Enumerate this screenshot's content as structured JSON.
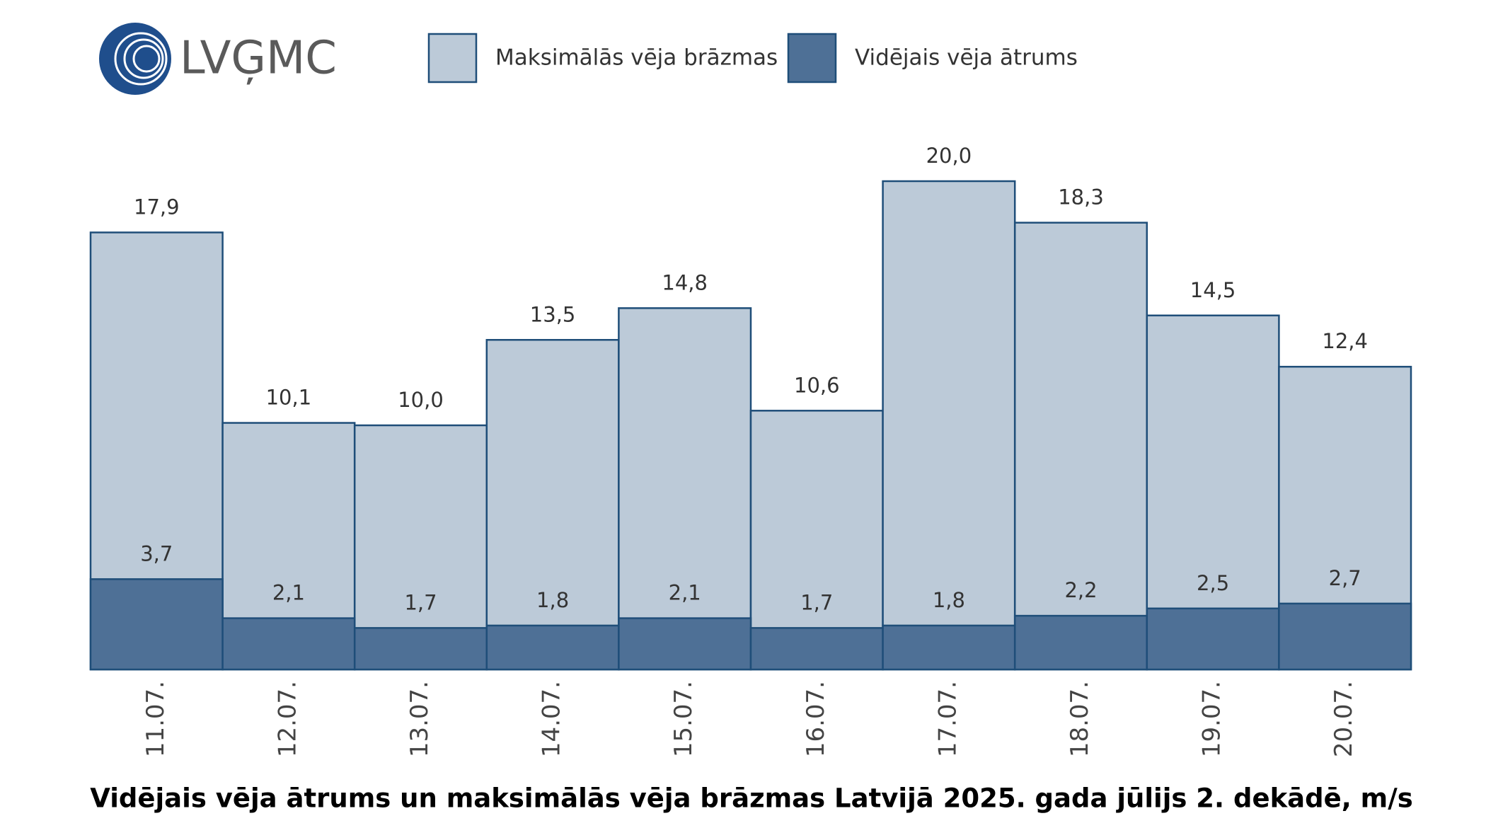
{
  "logo": "LVĢMC",
  "chart_data": {
    "type": "overlap-bar",
    "title": "Vidējais vēja ātrums un maksimālās vēja brāzmas Latvijā 2025. gada jūlijs 2. dekādē, m/s",
    "categories": [
      "11.07.",
      "12.07.",
      "13.07.",
      "14.07.",
      "15.07.",
      "16.07.",
      "17.07.",
      "18.07.",
      "19.07.",
      "20.07."
    ],
    "series": [
      {
        "name": "Maksimālās vēja brāzmas",
        "color": "#bccad8",
        "values": [
          17.9,
          10.1,
          10.0,
          13.5,
          14.8,
          10.6,
          20.0,
          18.3,
          14.5,
          12.4
        ],
        "value_labels": [
          "17,9",
          "10,1",
          "10,0",
          "13,5",
          "14,8",
          "10,6",
          "20,0",
          "18,3",
          "14,5",
          "12,4"
        ]
      },
      {
        "name": "Vidējais vēja ātrums",
        "color": "#4e7096",
        "values": [
          3.7,
          2.1,
          1.7,
          1.8,
          2.1,
          1.7,
          1.8,
          2.2,
          2.5,
          2.7
        ],
        "value_labels": [
          "3,7",
          "2,1",
          "1,7",
          "1,8",
          "2,1",
          "1,7",
          "1,8",
          "2,2",
          "2,5",
          "2,7"
        ]
      }
    ],
    "bar_stroke": "#1f4e79"
  }
}
